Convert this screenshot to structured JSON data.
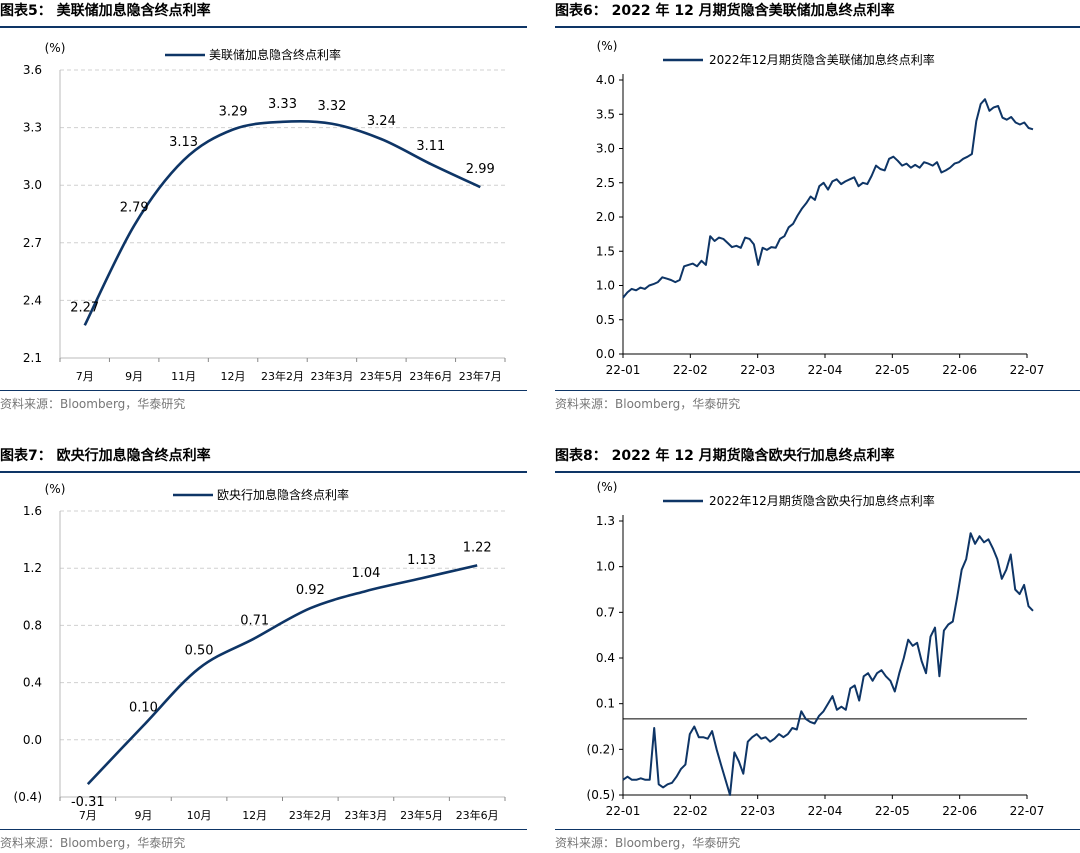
{
  "source": "资料来源：Bloomberg，华泰研究",
  "panels": [
    {
      "title": "图表5：  美联储加息隐含终点利率"
    },
    {
      "title": "图表6：  2022 年 12 月期货隐含美联储加息终点利率"
    },
    {
      "title": "图表7：  欧央行加息隐含终点利率"
    },
    {
      "title": "图表8：  2022 年 12 月期货隐含欧央行加息终点利率"
    }
  ],
  "colors": {
    "line": "#0e3566",
    "grid": "#d0d0d0",
    "text": "#000000"
  },
  "chart_data": [
    {
      "type": "line",
      "unit": "(%)",
      "categories": [
        "7月",
        "9月",
        "11月",
        "12月",
        "23年2月",
        "23年3月",
        "23年5月",
        "23年6月",
        "23年7月"
      ],
      "series": [
        {
          "name": "美联储加息隐含终点利率",
          "values": [
            2.27,
            2.79,
            3.13,
            3.29,
            3.33,
            3.32,
            3.24,
            3.11,
            2.99
          ]
        }
      ],
      "data_labels": [
        "2.27",
        "2.79",
        "3.13",
        "3.29",
        "3.33",
        "3.32",
        "3.24",
        "3.11",
        "2.99"
      ],
      "yticks": [
        "2.1",
        "2.4",
        "2.7",
        "3.0",
        "3.3",
        "3.6"
      ],
      "ylim": [
        2.1,
        3.6
      ],
      "grid": true,
      "legend": "top"
    },
    {
      "type": "line",
      "unit": "(%)",
      "xticks": [
        "22-01",
        "22-02",
        "22-03",
        "22-04",
        "22-05",
        "22-06",
        "22-07"
      ],
      "series": [
        {
          "name": "2022年12月期货隐含美联储加息终点利率",
          "values": [
            0.82,
            0.9,
            0.95,
            0.93,
            0.97,
            0.95,
            1.0,
            1.02,
            1.05,
            1.12,
            1.1,
            1.08,
            1.05,
            1.08,
            1.28,
            1.3,
            1.32,
            1.28,
            1.36,
            1.3,
            1.72,
            1.65,
            1.7,
            1.68,
            1.62,
            1.56,
            1.58,
            1.55,
            1.7,
            1.68,
            1.6,
            1.3,
            1.55,
            1.52,
            1.56,
            1.55,
            1.68,
            1.72,
            1.85,
            1.9,
            2.02,
            2.12,
            2.2,
            2.3,
            2.25,
            2.45,
            2.5,
            2.4,
            2.52,
            2.55,
            2.48,
            2.52,
            2.55,
            2.58,
            2.45,
            2.5,
            2.48,
            2.6,
            2.75,
            2.7,
            2.68,
            2.85,
            2.88,
            2.82,
            2.75,
            2.78,
            2.72,
            2.76,
            2.72,
            2.8,
            2.78,
            2.75,
            2.8,
            2.65,
            2.68,
            2.72,
            2.78,
            2.8,
            2.85,
            2.88,
            2.92,
            3.4,
            3.65,
            3.72,
            3.55,
            3.6,
            3.62,
            3.45,
            3.42,
            3.46,
            3.38,
            3.35,
            3.38,
            3.3,
            3.28
          ]
        }
      ],
      "yticks": [
        "0.0",
        "0.5",
        "1.0",
        "1.5",
        "2.0",
        "2.5",
        "3.0",
        "3.5",
        "4.0"
      ],
      "ylim": [
        0,
        4.0
      ],
      "grid": false,
      "legend": "top"
    },
    {
      "type": "line",
      "unit": "(%)",
      "categories": [
        "7月",
        "9月",
        "10月",
        "12月",
        "23年2月",
        "23年3月",
        "23年5月",
        "23年6月"
      ],
      "series": [
        {
          "name": "欧央行加息隐含终点利率",
          "values": [
            -0.31,
            0.1,
            0.5,
            0.71,
            0.92,
            1.04,
            1.13,
            1.22
          ]
        }
      ],
      "data_labels": [
        "-0.31",
        "0.10",
        "0.50",
        "0.71",
        "0.92",
        "1.04",
        "1.13",
        "1.22"
      ],
      "yticks": [
        "(0.4)",
        "0.0",
        "0.4",
        "0.8",
        "1.2",
        "1.6"
      ],
      "ylim": [
        -0.4,
        1.6
      ],
      "grid": true,
      "legend": "top"
    },
    {
      "type": "line",
      "unit": "(%)",
      "xticks": [
        "22-01",
        "22-02",
        "22-03",
        "22-04",
        "22-05",
        "22-06",
        "22-07"
      ],
      "series": [
        {
          "name": "2022年12月期货隐含欧央行加息终点利率",
          "values": [
            -0.4,
            -0.38,
            -0.4,
            -0.4,
            -0.39,
            -0.4,
            -0.4,
            -0.06,
            -0.43,
            -0.45,
            -0.43,
            -0.42,
            -0.38,
            -0.33,
            -0.3,
            -0.1,
            -0.05,
            -0.12,
            -0.12,
            -0.13,
            -0.08,
            -0.2,
            -0.3,
            -0.4,
            -0.5,
            -0.22,
            -0.28,
            -0.36,
            -0.15,
            -0.12,
            -0.1,
            -0.13,
            -0.12,
            -0.15,
            -0.13,
            -0.1,
            -0.12,
            -0.1,
            -0.06,
            -0.07,
            0.05,
            0.0,
            -0.02,
            -0.03,
            0.02,
            0.05,
            0.1,
            0.15,
            0.06,
            0.08,
            0.06,
            0.2,
            0.22,
            0.12,
            0.28,
            0.3,
            0.25,
            0.3,
            0.32,
            0.28,
            0.25,
            0.18,
            0.3,
            0.4,
            0.52,
            0.48,
            0.5,
            0.38,
            0.3,
            0.54,
            0.6,
            0.28,
            0.58,
            0.62,
            0.64,
            0.8,
            0.98,
            1.05,
            1.22,
            1.15,
            1.2,
            1.16,
            1.18,
            1.12,
            1.05,
            0.92,
            0.98,
            1.08,
            0.85,
            0.82,
            0.88,
            0.74,
            0.71
          ]
        }
      ],
      "yticks": [
        "(0.5)",
        "(0.2)",
        "0.1",
        "0.4",
        "0.7",
        "1.0",
        "1.3"
      ],
      "ylim": [
        -0.5,
        1.3
      ],
      "grid": false,
      "legend": "top"
    }
  ]
}
